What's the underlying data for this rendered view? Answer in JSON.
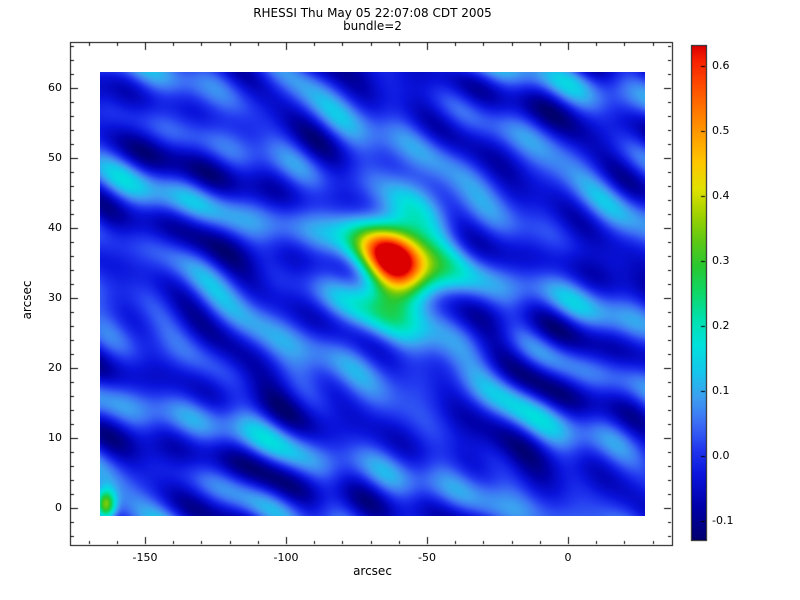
{
  "chart_data": {
    "type": "heatmap",
    "title": "RHESSI Thu May 05 22:07:08 CDT 2005",
    "subtitle": "bundle=2",
    "xlabel": "arcsec",
    "ylabel": "arcsec",
    "x_ticks": [
      -150,
      -100,
      -50,
      0
    ],
    "y_ticks": [
      0,
      10,
      20,
      30,
      40,
      50,
      60
    ],
    "x_minor_step": 10,
    "y_minor_step": 2,
    "x_range": [
      -176.6,
      36.9
    ],
    "y_range": [
      -5.3,
      66.6
    ],
    "image_extent": {
      "x": [
        -166.0,
        27.3
      ],
      "y": [
        -1.1,
        62.3
      ]
    },
    "value_range": [
      -0.13,
      0.63
    ],
    "colorbar_ticks": [
      -0.1,
      0.0,
      0.1,
      0.2,
      0.3,
      0.4,
      0.5,
      0.6
    ],
    "peak": {
      "x": -60,
      "y": 35,
      "value": 0.63
    },
    "base_level": 0.0,
    "legend_position": "right-colorbar",
    "grid": false,
    "sources": [
      {
        "cx": -61,
        "cy": 35.5,
        "sx": 8,
        "sy": 4.5,
        "a": 0.5
      },
      {
        "cx": -63,
        "cy": 34.0,
        "sx": 15,
        "sy": 8.0,
        "a": 0.14
      },
      {
        "cx": -45,
        "cy": 36.0,
        "sx": 8,
        "sy": 4.0,
        "a": 0.07
      },
      {
        "cx": -164,
        "cy": 0.5,
        "sx": 2.5,
        "sy": 1.5,
        "a": 0.35
      }
    ],
    "background_modes": [
      {
        "kx": 0.06,
        "ky": 0.62,
        "ph": 0.0,
        "a": 0.039
      },
      {
        "kx": 0.13,
        "ky": 0.5,
        "ph": 1.3,
        "a": 0.034
      },
      {
        "kx": 0.09,
        "ky": 0.78,
        "ph": 2.6,
        "a": 0.029
      },
      {
        "kx": 0.2,
        "ky": 0.45,
        "ph": 4.1,
        "a": 0.026
      },
      {
        "kx": 0.16,
        "ky": 0.68,
        "ph": 5.0,
        "a": 0.026
      },
      {
        "kx": 0.045,
        "ky": 0.4,
        "ph": 0.9,
        "a": 0.031
      },
      {
        "kx": 0.26,
        "ky": 0.58,
        "ph": 2.2,
        "a": 0.021
      },
      {
        "kx": 0.11,
        "ky": 0.3,
        "ph": 3.7,
        "a": 0.023
      },
      {
        "kx": 0.3,
        "ky": 0.22,
        "ph": 5.6,
        "a": 0.018
      }
    ],
    "colormap_stops": [
      [
        -0.13,
        "#00006e"
      ],
      [
        -0.08,
        "#0000a8"
      ],
      [
        -0.03,
        "#0a14dc"
      ],
      [
        0.01,
        "#2238f0"
      ],
      [
        0.05,
        "#3c6ef5"
      ],
      [
        0.09,
        "#3ca0f0"
      ],
      [
        0.13,
        "#14c8eb"
      ],
      [
        0.17,
        "#00e1dc"
      ],
      [
        0.21,
        "#00e1af"
      ],
      [
        0.25,
        "#0fd768"
      ],
      [
        0.29,
        "#28c832"
      ],
      [
        0.33,
        "#5fc814"
      ],
      [
        0.37,
        "#a0d200"
      ],
      [
        0.41,
        "#e1e100"
      ],
      [
        0.45,
        "#ffc800"
      ],
      [
        0.49,
        "#ffa000"
      ],
      [
        0.53,
        "#ff7800"
      ],
      [
        0.57,
        "#ff4b00"
      ],
      [
        0.61,
        "#f51e00"
      ],
      [
        0.63,
        "#dc0000"
      ]
    ]
  }
}
